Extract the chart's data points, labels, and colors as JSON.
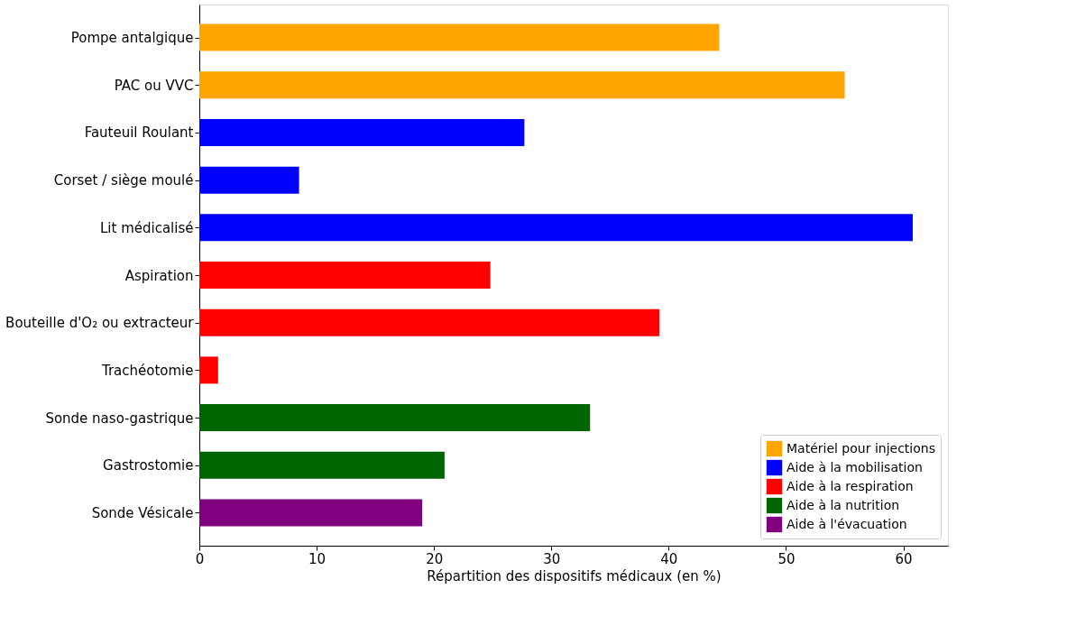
{
  "chart_data": {
    "type": "bar",
    "orientation": "horizontal",
    "xlabel": "Répartition des dispositifs médicaux (en %)",
    "categories": [
      "Pompe antalgique",
      "PAC ou VVC",
      "Fauteuil Roulant",
      "Corset / siège moulé",
      "Lit médicalisé",
      "Aspiration",
      "Bouteille d'O₂ ou extracteur",
      "Trachéotomie",
      "Sonde naso-gastrique",
      "Gastrostomie",
      "Sonde Vésicale"
    ],
    "series": [
      {
        "name": "Matériel pour injections",
        "color": "#ffa500",
        "values": [
          44.3,
          55.0,
          null,
          null,
          null,
          null,
          null,
          null,
          null,
          null,
          null
        ]
      },
      {
        "name": "Aide à la mobilisation",
        "color": "#0000ff",
        "values": [
          null,
          null,
          27.7,
          8.5,
          60.8,
          null,
          null,
          null,
          null,
          null,
          null
        ]
      },
      {
        "name": "Aide à la respiration",
        "color": "#ff0000",
        "values": [
          null,
          null,
          null,
          null,
          null,
          24.8,
          39.2,
          1.6,
          null,
          null,
          null
        ]
      },
      {
        "name": "Aide à la nutrition",
        "color": "#006400",
        "values": [
          null,
          null,
          null,
          null,
          null,
          null,
          null,
          null,
          33.3,
          20.9,
          null
        ]
      },
      {
        "name": "Aide à l'évacuation",
        "color": "#800080",
        "values": [
          null,
          null,
          null,
          null,
          null,
          null,
          null,
          null,
          null,
          null,
          19.0
        ]
      }
    ],
    "xlim": [
      0,
      63.8
    ],
    "xticks": [
      0,
      10,
      20,
      30,
      40,
      50,
      60
    ],
    "grid": false,
    "legend": "bottom right"
  }
}
